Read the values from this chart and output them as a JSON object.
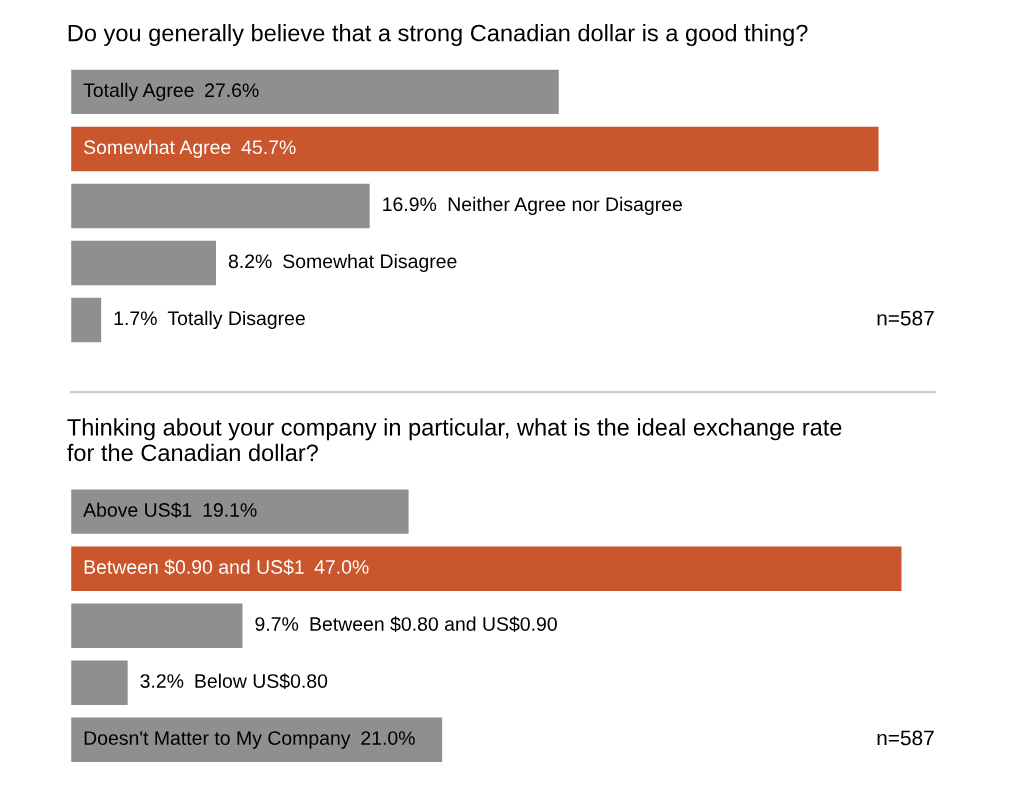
{
  "chart_data": [
    {
      "type": "bar",
      "orientation": "horizontal",
      "title": "Do you generally believe that a strong Canadian dollar is a good thing?",
      "categories": [
        "Totally Agree",
        "Somewhat Agree",
        "Neither Agree nor Disagree",
        "Somewhat Disagree",
        "Totally Disagree"
      ],
      "values": [
        27.6,
        45.7,
        16.9,
        8.2,
        1.7
      ],
      "value_labels": [
        "27.6%",
        "45.7%",
        "16.9%",
        "8.2%",
        "1.7%"
      ],
      "colors": [
        "#8f8f8f",
        "#c9562c",
        "#8f8f8f",
        "#8f8f8f",
        "#8f8f8f"
      ],
      "annotations": [
        "n=587"
      ]
    },
    {
      "type": "bar",
      "orientation": "horizontal",
      "title": "Thinking about your company in particular, what is the ideal exchange rate\nfor the Canadian dollar?",
      "categories": [
        "Above US$1",
        "Between $0.90 and US$1",
        "Between $0.80 and US$0.90",
        "Below US$0.80",
        "Doesn't Matter to My Company"
      ],
      "values": [
        19.1,
        47.0,
        9.7,
        3.2,
        21.0
      ],
      "value_labels": [
        "19.1%",
        "47.0%",
        "9.7%",
        "3.2%",
        "21.0%"
      ],
      "colors": [
        "#8f8f8f",
        "#c9562c",
        "#8f8f8f",
        "#8f8f8f",
        "#8f8f8f"
      ],
      "annotations": [
        "n=587"
      ]
    }
  ]
}
